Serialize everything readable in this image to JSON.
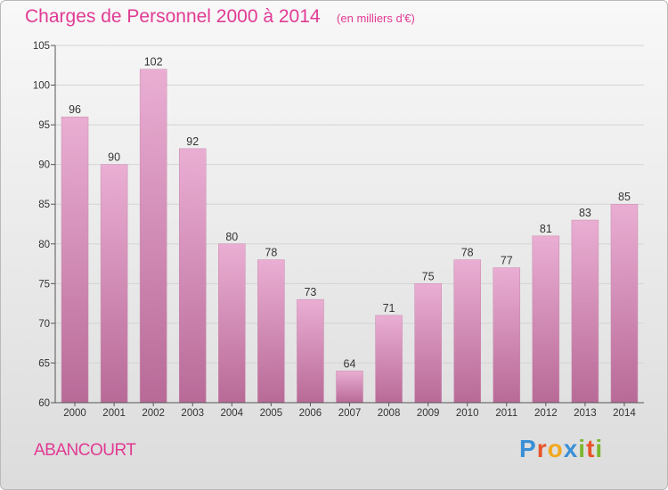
{
  "chart_data": {
    "type": "bar",
    "title": "Charges de Personnel 2000 à 2014",
    "subtitle": "(en milliers d'€)",
    "categories": [
      "2000",
      "2001",
      "2002",
      "2003",
      "2004",
      "2005",
      "2006",
      "2007",
      "2008",
      "2009",
      "2010",
      "2011",
      "2012",
      "2013",
      "2014"
    ],
    "values": [
      96,
      90,
      102,
      92,
      80,
      78,
      73,
      64,
      71,
      75,
      78,
      77,
      81,
      83,
      85
    ],
    "ylim": [
      60,
      105
    ],
    "yticks": [
      60,
      65,
      70,
      75,
      80,
      85,
      90,
      95,
      100,
      105
    ],
    "grid": true,
    "data_labels": true
  },
  "location_label": "ABANCOURT",
  "logo": {
    "letters": [
      {
        "ch": "P",
        "color": "#3a8fd6"
      },
      {
        "ch": "r",
        "color": "#e8542a"
      },
      {
        "ch": "o",
        "color": "#f2a81d"
      },
      {
        "ch": "x",
        "color": "#3a8fd6"
      },
      {
        "ch": "i",
        "color": "#7cb72f"
      },
      {
        "ch": "t",
        "color": "#e8542a"
      },
      {
        "ch": "i",
        "color": "#7cb72f"
      }
    ]
  },
  "colors": {
    "bar_top": "#eaaed3",
    "bar_bottom": "#b86a97",
    "title": "#e13a93",
    "axis": "#555555",
    "grid": "#d4d4d4"
  }
}
